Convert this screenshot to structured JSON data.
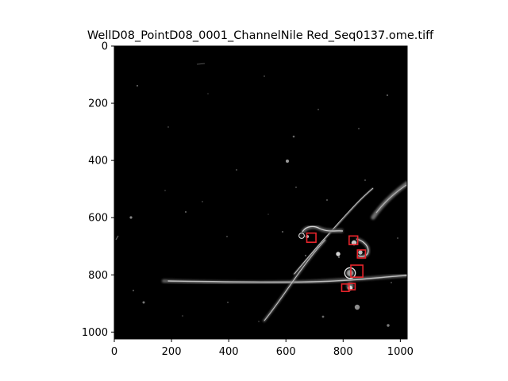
{
  "figure": {
    "title": "WellD08_PointD08_0001_ChannelNile Red_Seq0137.ome.tiff"
  },
  "image": {
    "width_units": 1024,
    "height_units": 1024,
    "background_color": "#000000",
    "annotation_color": "#e8242b",
    "detections": [
      {
        "x": 673,
        "y": 654,
        "w": 32,
        "h": 32
      },
      {
        "x": 821,
        "y": 664,
        "w": 30,
        "h": 30
      },
      {
        "x": 850,
        "y": 713,
        "w": 28,
        "h": 28
      },
      {
        "x": 827,
        "y": 766,
        "w": 42,
        "h": 42
      },
      {
        "x": 795,
        "y": 832,
        "w": 26,
        "h": 26
      },
      {
        "x": 820,
        "y": 830,
        "w": 22,
        "h": 22
      }
    ]
  },
  "axes": {
    "x_ticks": [
      0,
      200,
      400,
      600,
      800,
      1000
    ],
    "y_ticks": [
      0,
      200,
      400,
      600,
      800,
      1000
    ],
    "xlim": [
      0,
      1024
    ],
    "ylim": [
      1024,
      0
    ]
  }
}
